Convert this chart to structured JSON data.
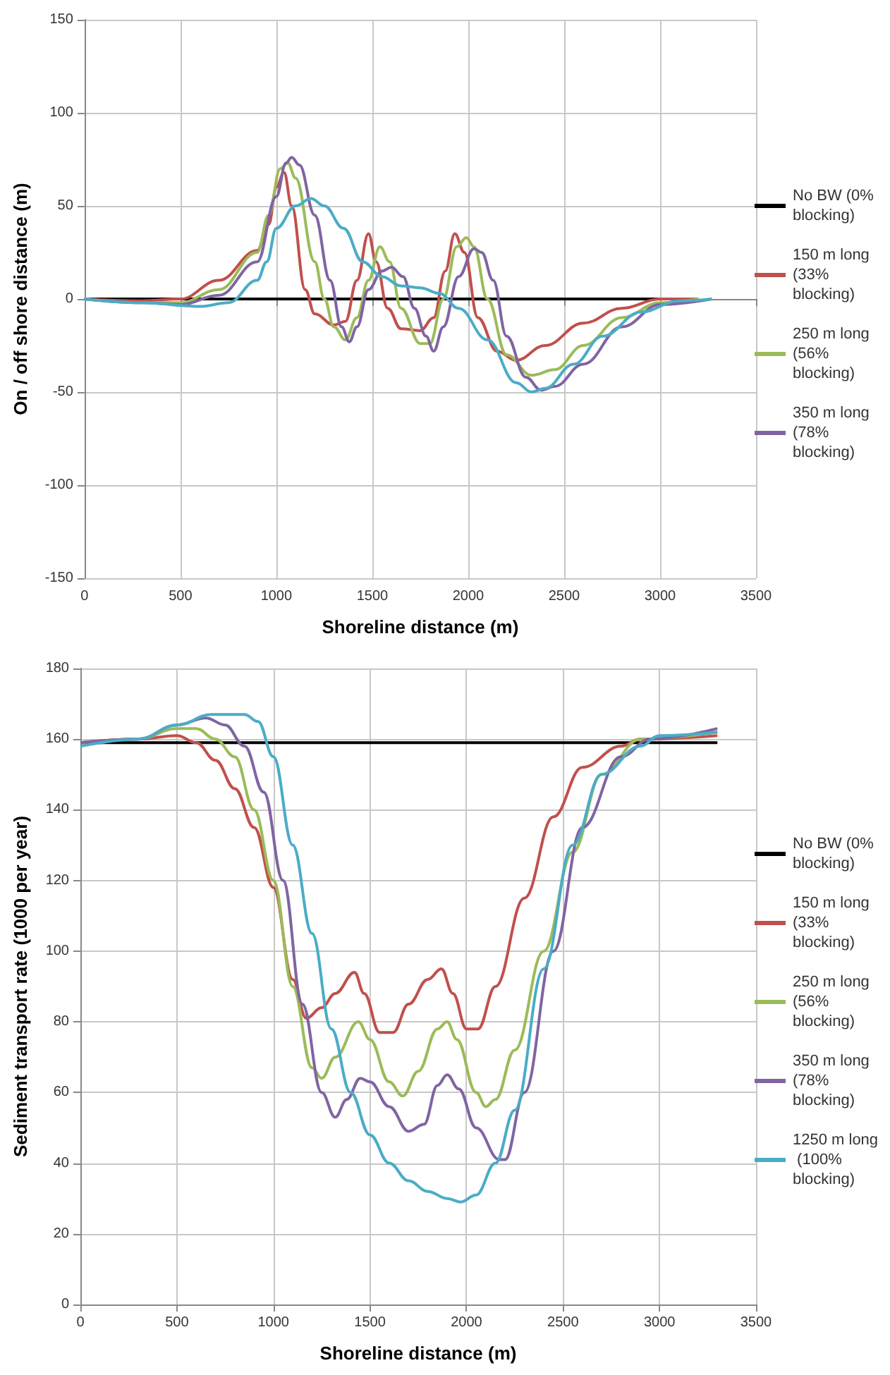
{
  "chart_data": [
    {
      "type": "line",
      "xlabel": "Shoreline distance (m)",
      "ylabel": "On / off shore distance (m)",
      "xlim": [
        0,
        3500
      ],
      "xticks": [
        0,
        500,
        1000,
        1500,
        2000,
        2500,
        3000,
        3500
      ],
      "ylim": [
        -150,
        150
      ],
      "yticks": [
        -150,
        -100,
        -50,
        0,
        50,
        100,
        150
      ],
      "grid": true,
      "legend": "right",
      "marker": "none",
      "line_style": "solid",
      "series": [
        {
          "name": "No BW (0% blocking)",
          "color": "#000000",
          "x": [
            0,
            3100
          ],
          "values": [
            0,
            0
          ]
        },
        {
          "name": "150 m long (33% blocking)",
          "color": "#c0504d",
          "x": [
            0,
            300,
            500,
            700,
            900,
            960,
            1000,
            1040,
            1080,
            1150,
            1200,
            1300,
            1360,
            1420,
            1480,
            1520,
            1580,
            1650,
            1750,
            1820,
            1880,
            1930,
            1980,
            2050,
            2150,
            2250,
            2400,
            2600,
            2800,
            3000,
            3200
          ],
          "values": [
            0,
            -1,
            0,
            10,
            26,
            40,
            60,
            68,
            50,
            5,
            -8,
            -14,
            -12,
            10,
            35,
            20,
            -5,
            -16,
            -17,
            -10,
            15,
            35,
            25,
            -10,
            -28,
            -33,
            -25,
            -13,
            -5,
            0,
            0
          ]
        },
        {
          "name": "250 m long (56% blocking)",
          "color": "#9bbb59",
          "x": [
            0,
            300,
            500,
            700,
            900,
            960,
            1020,
            1060,
            1100,
            1200,
            1250,
            1300,
            1360,
            1420,
            1480,
            1540,
            1590,
            1650,
            1750,
            1800,
            1870,
            1940,
            1990,
            2030,
            2100,
            2200,
            2330,
            2450,
            2600,
            2800,
            3000,
            3200
          ],
          "values": [
            0,
            -2,
            -2,
            5,
            25,
            45,
            70,
            73,
            65,
            20,
            0,
            -15,
            -22,
            -10,
            10,
            28,
            20,
            -5,
            -24,
            -24,
            0,
            28,
            33,
            28,
            0,
            -30,
            -41,
            -38,
            -25,
            -10,
            -2,
            0
          ]
        },
        {
          "name": "350 m long (78% blocking)",
          "color": "#8064a2",
          "x": [
            0,
            300,
            500,
            700,
            900,
            1000,
            1050,
            1080,
            1120,
            1200,
            1280,
            1340,
            1380,
            1420,
            1480,
            1550,
            1600,
            1660,
            1720,
            1780,
            1820,
            1870,
            1950,
            2030,
            2070,
            2130,
            2200,
            2300,
            2380,
            2450,
            2600,
            2800,
            3000,
            3270
          ],
          "values": [
            0,
            -2,
            -3,
            2,
            20,
            55,
            73,
            76,
            72,
            45,
            10,
            -15,
            -23,
            -15,
            5,
            15,
            17,
            12,
            -5,
            -20,
            -28,
            -15,
            12,
            27,
            25,
            10,
            -20,
            -42,
            -49,
            -47,
            -35,
            -15,
            -3,
            0
          ]
        },
        {
          "color": "#4bacc6",
          "x": [
            0,
            300,
            600,
            750,
            900,
            950,
            1000,
            1100,
            1180,
            1250,
            1350,
            1450,
            1550,
            1650,
            1750,
            1850,
            1950,
            2100,
            2250,
            2330,
            2400,
            2550,
            2700,
            2900,
            3100,
            3270
          ],
          "values": [
            0,
            -2,
            -4,
            -2,
            10,
            20,
            38,
            50,
            54,
            50,
            38,
            20,
            12,
            7,
            6,
            3,
            -5,
            -22,
            -45,
            -50,
            -48,
            -35,
            -20,
            -7,
            -1,
            0
          ]
        }
      ]
    },
    {
      "type": "line",
      "xlabel": "Shoreline distance (m)",
      "ylabel": "Sediment transport rate (1000 per year)",
      "xlim": [
        0,
        3500
      ],
      "xticks": [
        0,
        500,
        1000,
        1500,
        2000,
        2500,
        3000,
        3500
      ],
      "ylim": [
        0,
        180
      ],
      "yticks": [
        0,
        20,
        40,
        60,
        80,
        100,
        120,
        140,
        160,
        180
      ],
      "grid": true,
      "legend": "right",
      "marker": "none",
      "line_style": "solid",
      "series": [
        {
          "name": "No BW (0% blocking)",
          "color": "#000000",
          "x": [
            0,
            3300
          ],
          "values": [
            159,
            159
          ]
        },
        {
          "name": "150 m long (33% blocking)",
          "color": "#c0504d",
          "x": [
            0,
            300,
            500,
            600,
            700,
            800,
            900,
            1000,
            1100,
            1170,
            1250,
            1320,
            1420,
            1470,
            1550,
            1620,
            1700,
            1800,
            1870,
            1930,
            2000,
            2060,
            2150,
            2300,
            2450,
            2600,
            2800,
            2900,
            3300
          ],
          "values": [
            159,
            160,
            161,
            159,
            154,
            146,
            135,
            118,
            92,
            81,
            84,
            88,
            94,
            88,
            77,
            77,
            85,
            92,
            95,
            88,
            78,
            78,
            90,
            115,
            138,
            152,
            158,
            160,
            161
          ]
        },
        {
          "name": "250 m long (56% blocking)",
          "color": "#9bbb59",
          "x": [
            0,
            300,
            500,
            600,
            700,
            800,
            900,
            1000,
            1100,
            1200,
            1250,
            1320,
            1440,
            1500,
            1600,
            1670,
            1750,
            1850,
            1900,
            1950,
            2050,
            2100,
            2150,
            2250,
            2400,
            2550,
            2700,
            2900,
            3300
          ],
          "values": [
            159,
            160,
            163,
            163,
            160,
            155,
            140,
            120,
            90,
            67,
            64,
            70,
            80,
            75,
            63,
            59,
            66,
            78,
            80,
            75,
            60,
            56,
            58,
            72,
            100,
            128,
            150,
            160,
            162
          ]
        },
        {
          "name": "350 m long (78% blocking)",
          "color": "#8064a2",
          "x": [
            0,
            300,
            500,
            650,
            750,
            850,
            950,
            1050,
            1150,
            1250,
            1320,
            1380,
            1450,
            1500,
            1600,
            1700,
            1780,
            1850,
            1900,
            1960,
            2050,
            2170,
            2200,
            2300,
            2450,
            2600,
            2800,
            2950,
            3300
          ],
          "values": [
            159,
            160,
            164,
            166,
            164,
            158,
            145,
            120,
            85,
            60,
            53,
            58,
            64,
            63,
            56,
            49,
            51,
            62,
            65,
            61,
            50,
            41,
            41,
            60,
            100,
            135,
            155,
            160,
            163
          ]
        },
        {
          "name": "1250 m long (100% blocking)",
          "color": "#4bacc6",
          "x": [
            0,
            300,
            500,
            680,
            850,
            920,
            1000,
            1100,
            1200,
            1300,
            1400,
            1500,
            1600,
            1700,
            1800,
            1900,
            1970,
            2050,
            2150,
            2250,
            2400,
            2550,
            2700,
            2900,
            3000,
            3300
          ],
          "values": [
            158,
            160,
            164,
            167,
            167,
            165,
            155,
            130,
            105,
            78,
            60,
            48,
            40,
            35,
            32,
            30,
            29,
            31,
            40,
            55,
            95,
            130,
            150,
            158,
            161,
            162
          ]
        }
      ]
    }
  ]
}
